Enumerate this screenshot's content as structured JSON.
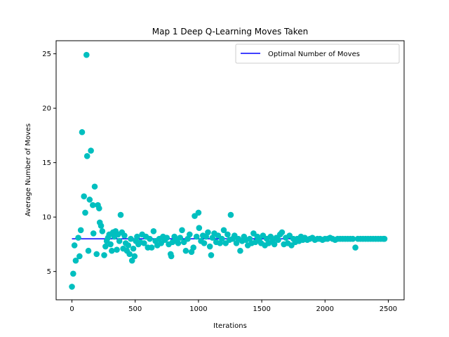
{
  "chart_data": {
    "type": "scatter",
    "title": "Map 1 Deep Q-Learning Moves Taken",
    "xlabel": "Iterations",
    "ylabel": "Average Number of Moves",
    "xlim": [
      -125,
      2625
    ],
    "ylim": [
      2.4,
      26.2
    ],
    "xticks": [
      0,
      500,
      1000,
      1500,
      2000,
      2500
    ],
    "yticks": [
      5,
      10,
      15,
      20,
      25
    ],
    "xtick_labels": [
      "0",
      "500",
      "1000",
      "1500",
      "2000",
      "2500"
    ],
    "ytick_labels": [
      "5",
      "10",
      "15",
      "20",
      "25"
    ],
    "grid": false,
    "legend": {
      "position": "top-right",
      "entries": [
        "Optimal Number of Moves"
      ]
    },
    "series": [
      {
        "name": "Optimal Number of Moves",
        "type": "line",
        "color": "#0000ff",
        "x": [
          0,
          2480
        ],
        "y": [
          8,
          8
        ]
      },
      {
        "type": "scatter",
        "color": "#00bfbf",
        "points": [
          [
            0,
            3.6
          ],
          [
            10,
            4.8
          ],
          [
            20,
            7.4
          ],
          [
            30,
            6.0
          ],
          [
            50,
            8.1
          ],
          [
            60,
            6.4
          ],
          [
            70,
            8.8
          ],
          [
            80,
            17.8
          ],
          [
            95,
            11.9
          ],
          [
            105,
            10.4
          ],
          [
            115,
            24.9
          ],
          [
            120,
            15.6
          ],
          [
            130,
            6.9
          ],
          [
            140,
            11.6
          ],
          [
            150,
            16.1
          ],
          [
            165,
            11.1
          ],
          [
            170,
            8.5
          ],
          [
            180,
            12.8
          ],
          [
            195,
            6.6
          ],
          [
            205,
            11.1
          ],
          [
            215,
            10.8
          ],
          [
            220,
            9.5
          ],
          [
            230,
            9.2
          ],
          [
            240,
            8.7
          ],
          [
            255,
            6.5
          ],
          [
            265,
            7.3
          ],
          [
            275,
            7.8
          ],
          [
            285,
            8.1
          ],
          [
            295,
            8.4
          ],
          [
            305,
            7.5
          ],
          [
            315,
            6.9
          ],
          [
            325,
            8.6
          ],
          [
            335,
            8.2
          ],
          [
            345,
            8.7
          ],
          [
            355,
            7.0
          ],
          [
            365,
            8.4
          ],
          [
            375,
            7.8
          ],
          [
            385,
            10.2
          ],
          [
            395,
            8.6
          ],
          [
            405,
            7.1
          ],
          [
            415,
            8.3
          ],
          [
            425,
            7.6
          ],
          [
            435,
            6.9
          ],
          [
            445,
            7.4
          ],
          [
            455,
            6.6
          ],
          [
            465,
            8.0
          ],
          [
            475,
            6.0
          ],
          [
            485,
            7.1
          ],
          [
            495,
            6.4
          ],
          [
            505,
            7.8
          ],
          [
            515,
            8.2
          ],
          [
            525,
            7.5
          ],
          [
            540,
            7.7
          ],
          [
            555,
            8.4
          ],
          [
            570,
            7.6
          ],
          [
            585,
            8.2
          ],
          [
            600,
            7.2
          ],
          [
            615,
            8.0
          ],
          [
            630,
            7.2
          ],
          [
            645,
            8.7
          ],
          [
            660,
            7.8
          ],
          [
            675,
            7.4
          ],
          [
            690,
            8.0
          ],
          [
            705,
            7.6
          ],
          [
            720,
            8.2
          ],
          [
            735,
            7.9
          ],
          [
            750,
            8.1
          ],
          [
            765,
            7.5
          ],
          [
            780,
            6.6
          ],
          [
            785,
            6.4
          ],
          [
            795,
            7.7
          ],
          [
            810,
            8.2
          ],
          [
            825,
            7.8
          ],
          [
            840,
            7.6
          ],
          [
            855,
            8.1
          ],
          [
            870,
            8.8
          ],
          [
            885,
            7.7
          ],
          [
            900,
            6.9
          ],
          [
            915,
            8.0
          ],
          [
            930,
            8.4
          ],
          [
            945,
            6.8
          ],
          [
            960,
            7.2
          ],
          [
            970,
            10.1
          ],
          [
            985,
            8.2
          ],
          [
            1000,
            10.4
          ],
          [
            1005,
            9.0
          ],
          [
            1020,
            7.8
          ],
          [
            1035,
            8.3
          ],
          [
            1045,
            7.6
          ],
          [
            1060,
            8.2
          ],
          [
            1075,
            8.6
          ],
          [
            1090,
            7.3
          ],
          [
            1100,
            6.5
          ],
          [
            1110,
            8.1
          ],
          [
            1125,
            8.5
          ],
          [
            1140,
            7.7
          ],
          [
            1155,
            8.3
          ],
          [
            1170,
            7.6
          ],
          [
            1185,
            8.0
          ],
          [
            1200,
            8.8
          ],
          [
            1215,
            7.6
          ],
          [
            1230,
            8.4
          ],
          [
            1245,
            7.9
          ],
          [
            1255,
            10.2
          ],
          [
            1270,
            8.0
          ],
          [
            1285,
            8.3
          ],
          [
            1300,
            7.6
          ],
          [
            1315,
            8.0
          ],
          [
            1330,
            6.9
          ],
          [
            1345,
            7.8
          ],
          [
            1360,
            8.2
          ],
          [
            1375,
            7.9
          ],
          [
            1390,
            7.4
          ],
          [
            1405,
            8.0
          ],
          [
            1420,
            7.6
          ],
          [
            1435,
            8.5
          ],
          [
            1450,
            7.7
          ],
          [
            1465,
            8.2
          ],
          [
            1480,
            7.9
          ],
          [
            1495,
            7.6
          ],
          [
            1510,
            8.3
          ],
          [
            1525,
            7.4
          ],
          [
            1540,
            8.0
          ],
          [
            1555,
            7.6
          ],
          [
            1570,
            8.2
          ],
          [
            1585,
            7.8
          ],
          [
            1600,
            7.5
          ],
          [
            1615,
            8.1
          ],
          [
            1630,
            7.9
          ],
          [
            1645,
            8.4
          ],
          [
            1660,
            8.6
          ],
          [
            1675,
            7.5
          ],
          [
            1690,
            8.1
          ],
          [
            1705,
            7.6
          ],
          [
            1720,
            8.3
          ],
          [
            1735,
            7.4
          ],
          [
            1750,
            8.0
          ],
          [
            1765,
            7.7
          ],
          [
            1780,
            8.0
          ],
          [
            1795,
            7.8
          ],
          [
            1810,
            8.2
          ],
          [
            1825,
            7.9
          ],
          [
            1840,
            8.1
          ],
          [
            1860,
            7.9
          ],
          [
            1880,
            8.0
          ],
          [
            1900,
            8.1
          ],
          [
            1920,
            7.9
          ],
          [
            1940,
            8.0
          ],
          [
            1960,
            8.0
          ],
          [
            1980,
            7.9
          ],
          [
            2000,
            8.0
          ],
          [
            2020,
            8.0
          ],
          [
            2040,
            8.1
          ],
          [
            2060,
            8.0
          ],
          [
            2080,
            7.9
          ],
          [
            2100,
            8.0
          ],
          [
            2120,
            8.0
          ],
          [
            2140,
            8.0
          ],
          [
            2160,
            8.0
          ],
          [
            2180,
            8.0
          ],
          [
            2200,
            8.0
          ],
          [
            2220,
            8.0
          ],
          [
            2240,
            7.2
          ],
          [
            2260,
            8.0
          ],
          [
            2280,
            8.0
          ],
          [
            2300,
            8.0
          ],
          [
            2320,
            8.0
          ],
          [
            2340,
            8.0
          ],
          [
            2360,
            8.0
          ],
          [
            2380,
            8.0
          ],
          [
            2400,
            8.0
          ],
          [
            2420,
            8.0
          ],
          [
            2440,
            8.0
          ],
          [
            2460,
            8.0
          ],
          [
            2470,
            8.0
          ]
        ]
      }
    ]
  }
}
